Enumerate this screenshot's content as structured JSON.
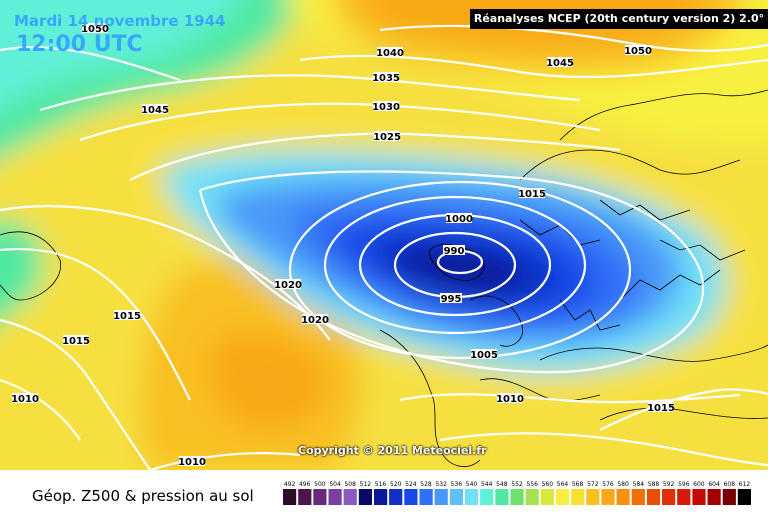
{
  "header": {
    "date": "Mardi 14 novembre 1944",
    "time": "12:00 UTC",
    "banner": "Réanalyses NCEP (20th century version 2) 2.0°"
  },
  "copyright": "Copyright © 2011 Meteociel.fr",
  "footer": {
    "title": "Géop. Z500 & pression au sol"
  },
  "isobar_labels": [
    "1050",
    "1040",
    "1045",
    "1050",
    "1045",
    "1035",
    "1030",
    "1025",
    "1015",
    "1000",
    "990",
    "995",
    "1005",
    "1010",
    "1015",
    "1020",
    "1020",
    "1015",
    "1010",
    "1010",
    "1015"
  ],
  "legend": {
    "ticks": [
      "492",
      "496",
      "500",
      "504",
      "508",
      "512",
      "516",
      "520",
      "524",
      "528",
      "532",
      "536",
      "540",
      "544",
      "548",
      "552",
      "556",
      "560",
      "564",
      "568",
      "572",
      "576",
      "580",
      "584",
      "588",
      "592",
      "596",
      "600",
      "604",
      "608",
      "612"
    ],
    "colors": [
      "#2a0d2a",
      "#4b1650",
      "#6a2a7a",
      "#7b3fa0",
      "#8a5ac0",
      "#0a0a60",
      "#0a1a9a",
      "#1030c8",
      "#1848e8",
      "#3070f8",
      "#4a98f8",
      "#60c0f8",
      "#70e0f8",
      "#60f0d8",
      "#50e8a0",
      "#70e070",
      "#a8e050",
      "#d8e840",
      "#f8f040",
      "#f8e030",
      "#f8c020",
      "#f8a818",
      "#f89010",
      "#f07008",
      "#e85008",
      "#e03008",
      "#d81808",
      "#c80808",
      "#a00000",
      "#780000",
      "#000000"
    ]
  },
  "colors": {
    "title": "#38a8ff",
    "isobar": "#ffffff",
    "coast": "#000000"
  }
}
